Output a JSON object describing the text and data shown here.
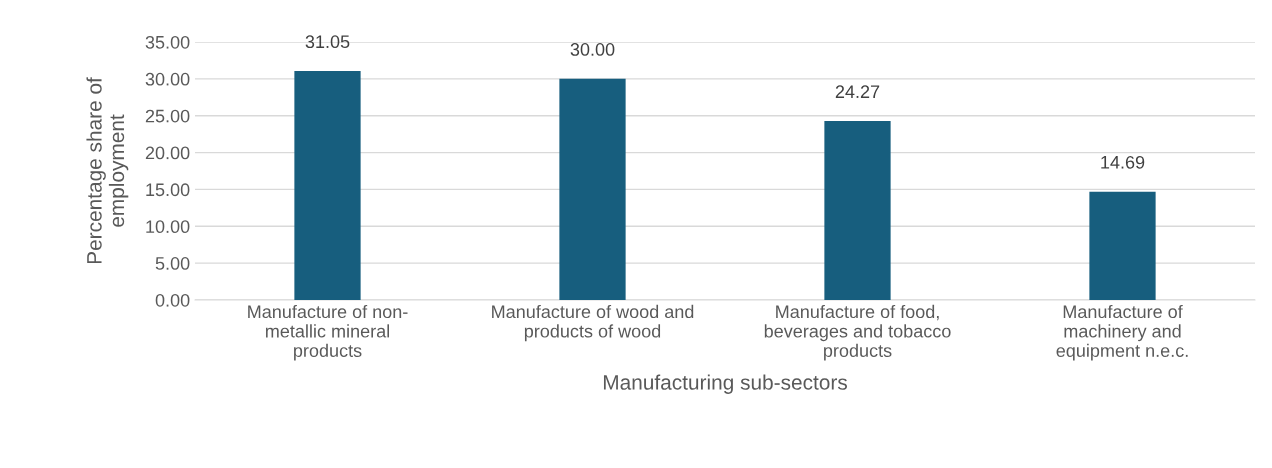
{
  "chart_data": {
    "type": "bar",
    "xlabel": "Manufacturing sub-sectors",
    "ylabel": "Percentage share of\nemployment",
    "categories": [
      "Manufacture of non-\nmetallic mineral\nproducts",
      "Manufacture of wood and\nproducts of wood",
      "Manufacture of food,\nbeverages and tobacco\nproducts",
      "Manufacture of\nmachinery and\nequipment n.e.c."
    ],
    "values": [
      31.05,
      30.0,
      24.27,
      14.69
    ],
    "value_labels": [
      "31.05",
      "30.00",
      "24.27",
      "14.69"
    ],
    "color": "#175e7e",
    "ylim": [
      0,
      35
    ],
    "yticks": [
      {
        "value": 0,
        "label": "0.00"
      },
      {
        "value": 5,
        "label": "5.00"
      },
      {
        "value": 10,
        "label": "10.00"
      },
      {
        "value": 15,
        "label": "15.00"
      },
      {
        "value": 20,
        "label": "20.00"
      },
      {
        "value": 25,
        "label": "25.00"
      },
      {
        "value": 30,
        "label": "30.00"
      },
      {
        "value": 35,
        "label": "35.00"
      }
    ],
    "grid": "y"
  }
}
